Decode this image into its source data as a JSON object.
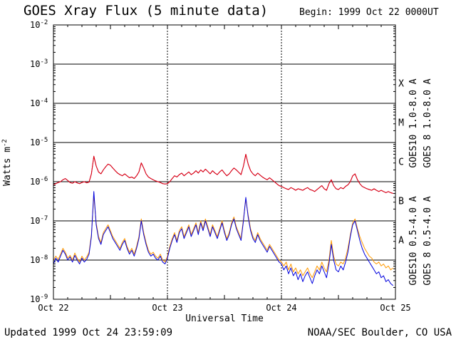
{
  "page": {
    "background": "#ffffff"
  },
  "header": {
    "title": "GOES Xray Flux (5 minute data)",
    "begin": "Begin: 1999 Oct 22 0000UT"
  },
  "footer": {
    "updated": "Updated 1999 Oct 24 23:59:09",
    "credit": "NOAA/SEC Boulder, CO USA"
  },
  "chart_data": {
    "type": "line",
    "title": "GOES Xray Flux (5 minute data)",
    "begin_label": "Begin: 1999 Oct 22 0000UT",
    "xlabel": "Universal Time",
    "ylabel_base": "Watts m",
    "ylabel_exp": "-2",
    "x_unit": "days since 1999 Oct 22 0000 UT",
    "x_range": [
      0,
      3
    ],
    "x_ticks": [
      {
        "t": 0,
        "label": "Oct 22"
      },
      {
        "t": 1,
        "label": "Oct 23"
      },
      {
        "t": 2,
        "label": "Oct 24"
      },
      {
        "t": 3,
        "label": "Oct 25"
      }
    ],
    "y_scale": "log10",
    "y_range_log10": [
      -9,
      -2
    ],
    "y_ticks_log10": [
      -2,
      -3,
      -4,
      -5,
      -6,
      -7,
      -8,
      -9
    ],
    "grid": {
      "h_lines_log10": [
        -3,
        -4,
        -5,
        -6,
        -7,
        -8
      ],
      "v_lines_t": [
        1,
        2
      ]
    },
    "flux_classes": [
      {
        "letter": "X",
        "log10_mid": -3.5
      },
      {
        "letter": "M",
        "log10_mid": -4.5
      },
      {
        "letter": "C",
        "log10_mid": -5.5
      },
      {
        "letter": "B",
        "log10_mid": -6.5
      },
      {
        "letter": "A",
        "log10_mid": -7.5
      }
    ],
    "sample_step_days": 0.0208333,
    "series": [
      {
        "id": "goes10-long",
        "name": "GOES10 1.0-8.0 A",
        "color": "#aa00aa",
        "legend_col": 1,
        "legend_row": "top",
        "values_log10": [
          -6.08,
          -6.05,
          -6.02,
          -6.0,
          -5.95,
          -5.92,
          -5.97,
          -6.02,
          -6.04,
          -6.0,
          -6.03,
          -6.05,
          -6.02,
          -6.0,
          -6.03,
          -6.01,
          -5.8,
          -5.35,
          -5.6,
          -5.75,
          -5.8,
          -5.7,
          -5.62,
          -5.55,
          -5.58,
          -5.65,
          -5.72,
          -5.78,
          -5.82,
          -5.85,
          -5.8,
          -5.85,
          -5.9,
          -5.88,
          -5.92,
          -5.85,
          -5.75,
          -5.52,
          -5.65,
          -5.8,
          -5.88,
          -5.92,
          -5.95,
          -5.98,
          -6.0,
          -6.02,
          -6.05,
          -6.06,
          -6.05,
          -6.0,
          -5.92,
          -5.85,
          -5.88,
          -5.82,
          -5.78,
          -5.85,
          -5.8,
          -5.75,
          -5.82,
          -5.78,
          -5.72,
          -5.78,
          -5.7,
          -5.75,
          -5.68,
          -5.74,
          -5.8,
          -5.72,
          -5.78,
          -5.82,
          -5.75,
          -5.7,
          -5.78,
          -5.85,
          -5.8,
          -5.72,
          -5.65,
          -5.7,
          -5.76,
          -5.82,
          -5.6,
          -5.3,
          -5.55,
          -5.72,
          -5.8,
          -5.85,
          -5.78,
          -5.83,
          -5.88,
          -5.92,
          -5.95,
          -5.9,
          -5.95,
          -6.0,
          -6.05,
          -6.1,
          -6.12,
          -6.15,
          -6.18,
          -6.2,
          -6.15,
          -6.18,
          -6.22,
          -6.18,
          -6.2,
          -6.22,
          -6.18,
          -6.15,
          -6.2,
          -6.22,
          -6.25,
          -6.2,
          -6.15,
          -6.1,
          -6.18,
          -6.22,
          -6.05,
          -5.95,
          -6.1,
          -6.18,
          -6.2,
          -6.15,
          -6.18,
          -6.12,
          -6.08,
          -6.0,
          -5.85,
          -5.8,
          -5.95,
          -6.05,
          -6.12,
          -6.15,
          -6.18,
          -6.2,
          -6.22,
          -6.18,
          -6.22,
          -6.25,
          -6.22,
          -6.25,
          -6.28,
          -6.25,
          -6.28,
          -6.3
        ]
      },
      {
        "id": "goes8-long",
        "name": "GOES 8 1.0-8.0 A",
        "color": "#dd0000",
        "legend_col": 2,
        "legend_row": "top",
        "values_log10": [
          -6.08,
          -6.05,
          -6.02,
          -6.0,
          -5.95,
          -5.92,
          -5.97,
          -6.02,
          -6.04,
          -6.0,
          -6.03,
          -6.05,
          -6.02,
          -6.0,
          -6.03,
          -6.01,
          -5.8,
          -5.35,
          -5.6,
          -5.75,
          -5.8,
          -5.7,
          -5.62,
          -5.55,
          -5.58,
          -5.65,
          -5.72,
          -5.78,
          -5.82,
          -5.85,
          -5.8,
          -5.85,
          -5.9,
          -5.88,
          -5.92,
          -5.85,
          -5.75,
          -5.52,
          -5.65,
          -5.8,
          -5.88,
          -5.92,
          -5.95,
          -5.98,
          -6.0,
          -6.02,
          -6.05,
          -6.06,
          -6.05,
          -6.0,
          -5.92,
          -5.85,
          -5.88,
          -5.82,
          -5.78,
          -5.85,
          -5.8,
          -5.75,
          -5.82,
          -5.78,
          -5.72,
          -5.78,
          -5.7,
          -5.75,
          -5.68,
          -5.74,
          -5.8,
          -5.72,
          -5.78,
          -5.82,
          -5.75,
          -5.7,
          -5.78,
          -5.85,
          -5.8,
          -5.72,
          -5.65,
          -5.7,
          -5.76,
          -5.82,
          -5.6,
          -5.3,
          -5.55,
          -5.72,
          -5.8,
          -5.85,
          -5.78,
          -5.83,
          -5.88,
          -5.92,
          -5.95,
          -5.9,
          -5.95,
          -6.0,
          -6.05,
          -6.1,
          -6.12,
          -6.15,
          -6.18,
          -6.2,
          -6.15,
          -6.18,
          -6.22,
          -6.18,
          -6.2,
          -6.22,
          -6.18,
          -6.15,
          -6.2,
          -6.22,
          -6.25,
          -6.2,
          -6.15,
          -6.1,
          -6.18,
          -6.22,
          -6.05,
          -5.95,
          -6.1,
          -6.18,
          -6.2,
          -6.15,
          -6.18,
          -6.12,
          -6.08,
          -6.0,
          -5.85,
          -5.8,
          -5.95,
          -6.05,
          -6.12,
          -6.15,
          -6.18,
          -6.2,
          -6.22,
          -6.18,
          -6.22,
          -6.25,
          -6.22,
          -6.25,
          -6.28,
          -6.25,
          -6.28,
          -6.3
        ]
      },
      {
        "id": "goes10-short",
        "name": "GOES10 0.5-4.0 A",
        "color": "#ff9900",
        "legend_col": 1,
        "legend_row": "bottom",
        "values_log10": [
          -8.0,
          -7.9,
          -7.98,
          -7.85,
          -7.7,
          -7.8,
          -7.95,
          -7.88,
          -8.0,
          -7.82,
          -7.95,
          -8.05,
          -7.9,
          -8.0,
          -7.92,
          -7.8,
          -7.35,
          -6.35,
          -7.05,
          -7.4,
          -7.55,
          -7.3,
          -7.2,
          -7.1,
          -7.25,
          -7.4,
          -7.5,
          -7.6,
          -7.7,
          -7.55,
          -7.45,
          -7.65,
          -7.8,
          -7.7,
          -7.85,
          -7.65,
          -7.4,
          -6.95,
          -7.3,
          -7.55,
          -7.75,
          -7.85,
          -7.8,
          -7.9,
          -7.95,
          -7.85,
          -8.0,
          -8.05,
          -7.9,
          -7.65,
          -7.45,
          -7.3,
          -7.5,
          -7.25,
          -7.15,
          -7.4,
          -7.25,
          -7.1,
          -7.35,
          -7.2,
          -7.05,
          -7.3,
          -7.0,
          -7.2,
          -6.95,
          -7.15,
          -7.35,
          -7.1,
          -7.25,
          -7.4,
          -7.2,
          -7.0,
          -7.25,
          -7.45,
          -7.3,
          -7.05,
          -6.9,
          -7.15,
          -7.3,
          -7.45,
          -6.95,
          -6.45,
          -6.85,
          -7.2,
          -7.4,
          -7.5,
          -7.3,
          -7.45,
          -7.55,
          -7.65,
          -7.75,
          -7.6,
          -7.7,
          -7.8,
          -7.9,
          -8.0,
          -8.05,
          -8.15,
          -8.05,
          -8.25,
          -8.1,
          -8.3,
          -8.2,
          -8.35,
          -8.25,
          -8.4,
          -8.3,
          -8.2,
          -8.35,
          -8.45,
          -8.3,
          -8.15,
          -8.25,
          -8.05,
          -8.2,
          -8.3,
          -8.0,
          -7.5,
          -7.9,
          -8.1,
          -8.15,
          -8.05,
          -8.1,
          -7.95,
          -7.7,
          -7.35,
          -7.05,
          -6.95,
          -7.2,
          -7.4,
          -7.55,
          -7.7,
          -7.8,
          -7.9,
          -7.95,
          -8.05,
          -8.1,
          -8.05,
          -8.15,
          -8.1,
          -8.2,
          -8.15,
          -8.25,
          -8.2
        ]
      },
      {
        "id": "goes8-short",
        "name": "GOES 8 0.5-4.0 A",
        "color": "#0000dd",
        "legend_col": 2,
        "legend_row": "bottom",
        "values_log10": [
          -8.1,
          -7.95,
          -8.05,
          -7.9,
          -7.75,
          -7.85,
          -8.0,
          -7.92,
          -8.05,
          -7.88,
          -8.0,
          -8.1,
          -7.95,
          -8.05,
          -7.98,
          -7.85,
          -7.4,
          -6.25,
          -7.1,
          -7.45,
          -7.6,
          -7.35,
          -7.25,
          -7.15,
          -7.3,
          -7.45,
          -7.55,
          -7.65,
          -7.75,
          -7.6,
          -7.5,
          -7.7,
          -7.85,
          -7.75,
          -7.9,
          -7.7,
          -7.45,
          -7.0,
          -7.35,
          -7.6,
          -7.8,
          -7.9,
          -7.85,
          -7.95,
          -8.0,
          -7.9,
          -8.05,
          -8.1,
          -7.95,
          -7.7,
          -7.5,
          -7.35,
          -7.55,
          -7.3,
          -7.2,
          -7.45,
          -7.3,
          -7.15,
          -7.4,
          -7.25,
          -7.1,
          -7.35,
          -7.05,
          -7.25,
          -7.0,
          -7.2,
          -7.4,
          -7.15,
          -7.3,
          -7.45,
          -7.25,
          -7.05,
          -7.3,
          -7.5,
          -7.35,
          -7.1,
          -6.95,
          -7.2,
          -7.35,
          -7.5,
          -7.0,
          -6.4,
          -6.9,
          -7.25,
          -7.45,
          -7.55,
          -7.35,
          -7.5,
          -7.6,
          -7.7,
          -7.8,
          -7.65,
          -7.75,
          -7.85,
          -7.95,
          -8.05,
          -8.1,
          -8.25,
          -8.15,
          -8.35,
          -8.2,
          -8.4,
          -8.3,
          -8.5,
          -8.35,
          -8.55,
          -8.4,
          -8.3,
          -8.45,
          -8.6,
          -8.4,
          -8.25,
          -8.35,
          -8.15,
          -8.3,
          -8.45,
          -8.1,
          -7.6,
          -8.0,
          -8.25,
          -8.3,
          -8.15,
          -8.25,
          -8.05,
          -7.8,
          -7.4,
          -7.1,
          -7.0,
          -7.25,
          -7.5,
          -7.7,
          -7.85,
          -7.95,
          -8.05,
          -8.15,
          -8.25,
          -8.35,
          -8.3,
          -8.45,
          -8.4,
          -8.55,
          -8.5,
          -8.6,
          -8.65
        ]
      }
    ]
  }
}
